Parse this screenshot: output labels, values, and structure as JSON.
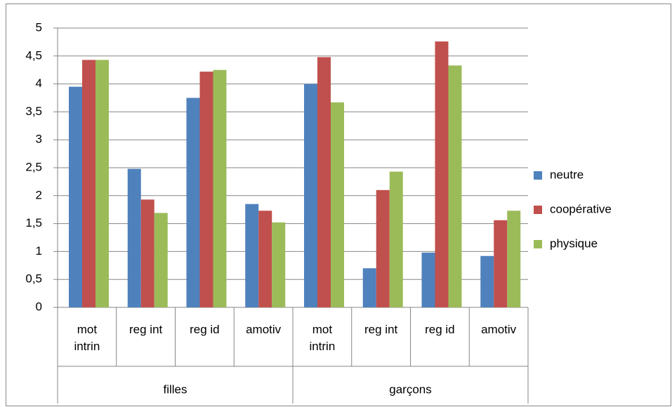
{
  "chart_data": {
    "type": "bar",
    "categories": [
      "mot intrin",
      "reg int",
      "reg id",
      "amotiv",
      "mot intrin",
      "reg int",
      "reg id",
      "amotiv"
    ],
    "groups": [
      "filles",
      "garçons"
    ],
    "series": [
      {
        "name": "neutre",
        "color": "#4f81bd",
        "values": [
          3.95,
          2.48,
          3.75,
          1.85,
          4.0,
          0.7,
          0.98,
          0.92
        ]
      },
      {
        "name": "coopérative",
        "color": "#c0504d",
        "values": [
          4.43,
          1.93,
          4.22,
          1.73,
          4.48,
          2.1,
          4.76,
          1.56
        ]
      },
      {
        "name": "physique",
        "color": "#9bbb59",
        "values": [
          4.43,
          1.69,
          4.25,
          1.52,
          3.67,
          2.43,
          4.33,
          1.73
        ]
      }
    ],
    "ylim": [
      0,
      5
    ],
    "yticks": [
      0,
      {
        "value": 0.5,
        "label": "0,5"
      },
      1,
      {
        "value": 1.5,
        "label": "1,5"
      },
      2,
      {
        "value": 2.5,
        "label": "2,5"
      },
      3,
      {
        "value": 3.5,
        "label": "3,5"
      },
      4,
      {
        "value": 4.5,
        "label": "4,5"
      },
      5
    ],
    "grid": true,
    "legend": "right"
  }
}
